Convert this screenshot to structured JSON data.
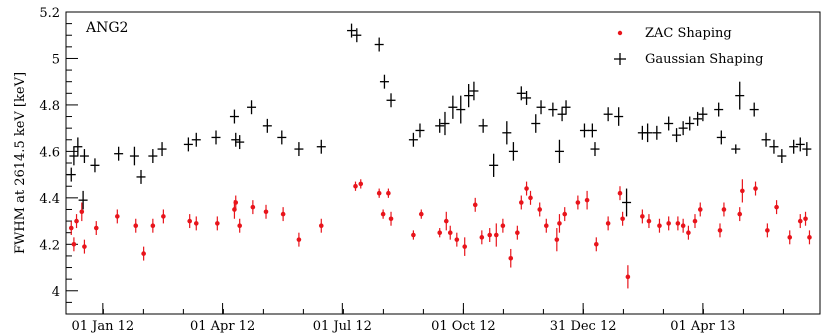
{
  "chart_data": {
    "type": "scatter",
    "title": "",
    "annotation": "ANG2",
    "xlabel": "",
    "ylabel": "FWHM at 2614.5 keV [keV]",
    "ylim": [
      3.9,
      5.2
    ],
    "xlim": [
      -28,
      545
    ],
    "x_unit": "days after 01 Jan 12",
    "yticks": [
      4,
      4.2,
      4.4,
      4.6,
      4.8,
      5,
      5.2
    ],
    "yticklabels": [
      "4",
      "4.2",
      "4.4",
      "4.6",
      "4.8",
      "5",
      "5.2"
    ],
    "xticks": [
      0,
      91,
      182,
      274,
      365,
      456
    ],
    "xticklabels": [
      "01 Jan 12",
      "01 Apr 12",
      "01 Jul 12",
      "01 Oct 12",
      "31 Dec 12",
      "01 Apr 13"
    ],
    "legend": {
      "position": "top-right"
    },
    "series": [
      {
        "name": "ZAC Shaping",
        "color": "#e8141b",
        "marker": "dot",
        "points": [
          [
            -24,
            4.27,
            0.03
          ],
          [
            -22,
            4.2,
            0.03
          ],
          [
            -20,
            4.3,
            0.03
          ],
          [
            -16,
            4.34,
            0.04
          ],
          [
            -14,
            4.19,
            0.03
          ],
          [
            -5,
            4.27,
            0.03
          ],
          [
            11,
            4.32,
            0.03
          ],
          [
            25,
            4.28,
            0.03
          ],
          [
            31,
            4.16,
            0.03
          ],
          [
            38,
            4.28,
            0.03
          ],
          [
            46,
            4.32,
            0.03
          ],
          [
            66,
            4.3,
            0.03
          ],
          [
            71,
            4.29,
            0.03
          ],
          [
            87,
            4.29,
            0.03
          ],
          [
            100,
            4.35,
            0.04
          ],
          [
            101,
            4.38,
            0.03
          ],
          [
            104,
            4.28,
            0.03
          ],
          [
            114,
            4.36,
            0.03
          ],
          [
            124,
            4.34,
            0.03
          ],
          [
            137,
            4.33,
            0.03
          ],
          [
            149,
            4.22,
            0.03
          ],
          [
            166,
            4.28,
            0.03
          ],
          [
            192,
            4.45,
            0.02
          ],
          [
            196,
            4.46,
            0.02
          ],
          [
            210,
            4.42,
            0.02
          ],
          [
            213,
            4.33,
            0.02
          ],
          [
            217,
            4.42,
            0.02
          ],
          [
            219,
            4.31,
            0.03
          ],
          [
            236,
            4.24,
            0.02
          ],
          [
            242,
            4.33,
            0.02
          ],
          [
            256,
            4.25,
            0.02
          ],
          [
            261,
            4.3,
            0.04
          ],
          [
            264,
            4.25,
            0.03
          ],
          [
            269,
            4.22,
            0.03
          ],
          [
            275,
            4.19,
            0.04
          ],
          [
            283,
            4.37,
            0.03
          ],
          [
            288,
            4.23,
            0.03
          ],
          [
            294,
            4.24,
            0.03
          ],
          [
            299,
            4.24,
            0.05
          ],
          [
            304,
            4.28,
            0.03
          ],
          [
            310,
            4.14,
            0.04
          ],
          [
            315,
            4.25,
            0.03
          ],
          [
            318,
            4.38,
            0.03
          ],
          [
            322,
            4.44,
            0.03
          ],
          [
            325,
            4.4,
            0.03
          ],
          [
            332,
            4.35,
            0.03
          ],
          [
            337,
            4.28,
            0.03
          ],
          [
            345,
            4.22,
            0.05
          ],
          [
            347,
            4.29,
            0.04
          ],
          [
            351,
            4.33,
            0.03
          ],
          [
            361,
            4.38,
            0.03
          ],
          [
            368,
            4.39,
            0.04
          ],
          [
            375,
            4.2,
            0.03
          ],
          [
            384,
            4.29,
            0.03
          ],
          [
            393,
            4.42,
            0.03
          ],
          [
            395,
            4.31,
            0.03
          ],
          [
            399,
            4.06,
            0.05
          ],
          [
            410,
            4.32,
            0.03
          ],
          [
            415,
            4.3,
            0.03
          ],
          [
            423,
            4.28,
            0.03
          ],
          [
            430,
            4.29,
            0.03
          ],
          [
            437,
            4.29,
            0.03
          ],
          [
            441,
            4.28,
            0.03
          ],
          [
            445,
            4.25,
            0.03
          ],
          [
            450,
            4.3,
            0.03
          ],
          [
            454,
            4.35,
            0.03
          ],
          [
            469,
            4.26,
            0.03
          ],
          [
            472,
            4.35,
            0.03
          ],
          [
            484,
            4.33,
            0.03
          ],
          [
            486,
            4.43,
            0.05
          ],
          [
            496,
            4.44,
            0.03
          ],
          [
            505,
            4.26,
            0.03
          ],
          [
            512,
            4.36,
            0.03
          ],
          [
            522,
            4.23,
            0.03
          ],
          [
            530,
            4.3,
            0.03
          ],
          [
            534,
            4.31,
            0.03
          ],
          [
            537,
            4.23,
            0.03
          ]
        ]
      },
      {
        "name": "Gaussian Shaping",
        "color": "#000000",
        "marker": "cross",
        "points": [
          [
            -24,
            4.5,
            0.03
          ],
          [
            -22,
            4.58,
            0.04
          ],
          [
            -19,
            4.62,
            0.04
          ],
          [
            -15,
            4.39,
            0.04
          ],
          [
            -14,
            4.58,
            0.03
          ],
          [
            -6,
            4.54,
            0.03
          ],
          [
            12,
            4.59,
            0.03
          ],
          [
            24,
            4.58,
            0.04
          ],
          [
            29,
            4.49,
            0.03
          ],
          [
            38,
            4.58,
            0.03
          ],
          [
            45,
            4.61,
            0.03
          ],
          [
            65,
            4.63,
            0.03
          ],
          [
            71,
            4.65,
            0.03
          ],
          [
            86,
            4.66,
            0.03
          ],
          [
            100,
            4.75,
            0.03
          ],
          [
            101,
            4.65,
            0.03
          ],
          [
            104,
            4.64,
            0.03
          ],
          [
            113,
            4.79,
            0.03
          ],
          [
            125,
            4.71,
            0.03
          ],
          [
            136,
            4.66,
            0.03
          ],
          [
            149,
            4.61,
            0.03
          ],
          [
            166,
            4.62,
            0.03
          ],
          [
            189,
            5.12,
            0.03
          ],
          [
            193,
            5.1,
            0.03
          ],
          [
            210,
            5.06,
            0.03
          ],
          [
            214,
            4.9,
            0.03
          ],
          [
            219,
            4.82,
            0.03
          ],
          [
            236,
            4.65,
            0.03
          ],
          [
            241,
            4.69,
            0.03
          ],
          [
            256,
            4.71,
            0.03
          ],
          [
            260,
            4.72,
            0.05
          ],
          [
            266,
            4.79,
            0.05
          ],
          [
            272,
            4.78,
            0.06
          ],
          [
            278,
            4.84,
            0.05
          ],
          [
            282,
            4.86,
            0.04
          ],
          [
            289,
            4.71,
            0.03
          ],
          [
            297,
            4.54,
            0.05
          ],
          [
            307,
            4.68,
            0.05
          ],
          [
            312,
            4.6,
            0.04
          ],
          [
            318,
            4.85,
            0.03
          ],
          [
            322,
            4.83,
            0.03
          ],
          [
            329,
            4.72,
            0.04
          ],
          [
            333,
            4.79,
            0.03
          ],
          [
            342,
            4.78,
            0.03
          ],
          [
            347,
            4.6,
            0.05
          ],
          [
            349,
            4.76,
            0.03
          ],
          [
            352,
            4.79,
            0.03
          ],
          [
            366,
            4.69,
            0.03
          ],
          [
            372,
            4.69,
            0.03
          ],
          [
            374,
            4.61,
            0.03
          ],
          [
            384,
            4.76,
            0.03
          ],
          [
            392,
            4.75,
            0.04
          ],
          [
            398,
            4.38,
            0.06
          ],
          [
            410,
            4.68,
            0.03
          ],
          [
            414,
            4.68,
            0.04
          ],
          [
            421,
            4.68,
            0.03
          ],
          [
            430,
            4.72,
            0.03
          ],
          [
            436,
            4.67,
            0.03
          ],
          [
            441,
            4.7,
            0.03
          ],
          [
            446,
            4.72,
            0.03
          ],
          [
            452,
            4.74,
            0.03
          ],
          [
            456,
            4.76,
            0.03
          ],
          [
            468,
            4.78,
            0.03
          ],
          [
            470,
            4.66,
            0.03
          ],
          [
            481,
            4.61,
            0.02
          ],
          [
            484,
            4.84,
            0.06
          ],
          [
            495,
            4.78,
            0.03
          ],
          [
            504,
            4.65,
            0.03
          ],
          [
            510,
            4.62,
            0.03
          ],
          [
            516,
            4.58,
            0.03
          ],
          [
            525,
            4.62,
            0.03
          ],
          [
            530,
            4.63,
            0.03
          ],
          [
            535,
            4.61,
            0.03
          ]
        ]
      }
    ]
  }
}
